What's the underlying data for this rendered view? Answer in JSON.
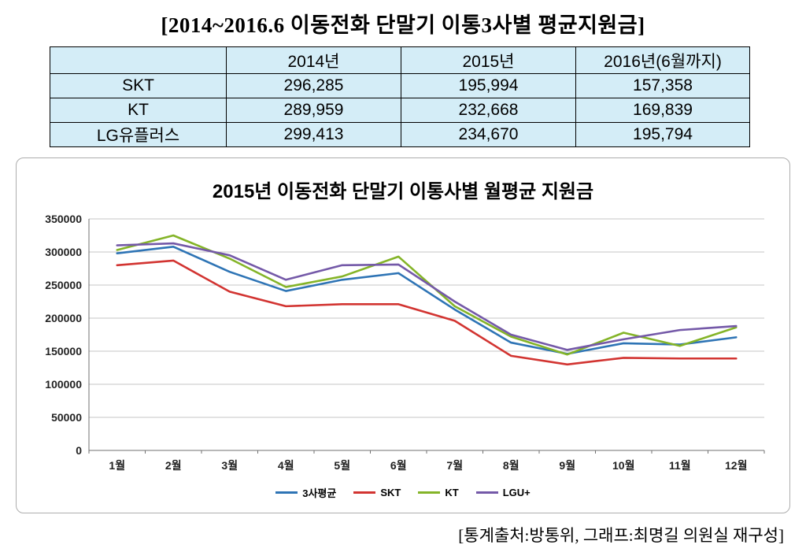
{
  "title": "[2014~2016.6 이동전화 단말기 이통3사별 평균지원금]",
  "colors": {
    "table_bg": "#d4edf7",
    "gridline": "#c6c6c6",
    "axis": "#707070"
  },
  "table": {
    "columns": [
      "",
      "2014년",
      "2015년",
      "2016년(6월까지)"
    ],
    "rows": [
      {
        "label": "SKT",
        "values": [
          "296,285",
          "195,994",
          "157,358"
        ]
      },
      {
        "label": "KT",
        "values": [
          "289,959",
          "232,668",
          "169,839"
        ]
      },
      {
        "label": "LG유플러스",
        "values": [
          "299,413",
          "234,670",
          "195,794"
        ]
      }
    ]
  },
  "chart_data": {
    "type": "line",
    "title": "2015년 이동전화 단말기 이통사별 월평균 지원금",
    "categories": [
      "1월",
      "2월",
      "3월",
      "4월",
      "5월",
      "6월",
      "7월",
      "8월",
      "9월",
      "10월",
      "11월",
      "12월"
    ],
    "series": [
      {
        "name": "3사평균",
        "color": "#2E74B5",
        "values": [
          298000,
          308000,
          270000,
          241000,
          258000,
          268000,
          213000,
          163000,
          146000,
          162000,
          160000,
          171000
        ]
      },
      {
        "name": "SKT",
        "color": "#D23431",
        "values": [
          280000,
          287000,
          240000,
          218000,
          221000,
          221000,
          196000,
          143000,
          130000,
          140000,
          139000,
          139000
        ]
      },
      {
        "name": "KT",
        "color": "#84B428",
        "values": [
          303000,
          325000,
          290000,
          247000,
          263000,
          293000,
          218000,
          172000,
          145000,
          178000,
          158000,
          186000
        ]
      },
      {
        "name": "LGU+",
        "color": "#7459A8",
        "values": [
          310000,
          313000,
          295000,
          258000,
          280000,
          281000,
          225000,
          175000,
          152000,
          168000,
          182000,
          188000
        ]
      }
    ],
    "ylim": [
      0,
      350000
    ],
    "ytick_step": 50000,
    "grid": true,
    "legend_position": "bottom"
  },
  "footer": "[통계출처:방통위,  그래프:최명길 의원실 재구성]"
}
